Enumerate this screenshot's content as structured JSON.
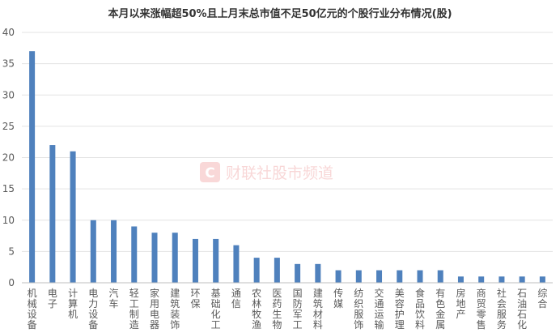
{
  "chart_data": {
    "type": "bar",
    "title": "本月以来涨幅超50%且上月末总市值不足50亿元的个股行业分布情况(股)",
    "xlabel": "",
    "ylabel": "",
    "ylim": [
      0,
      40
    ],
    "yticks": [
      0,
      5,
      10,
      15,
      20,
      25,
      30,
      35,
      40
    ],
    "grid": true,
    "legend": "none",
    "bar_color": "#4f81bd",
    "categories": [
      "机械设备",
      "电子",
      "计算机",
      "电力设备",
      "汽车",
      "轻工制造",
      "家用电器",
      "建筑装饰",
      "环保",
      "基础化工",
      "通信",
      "农林牧渔",
      "医药生物",
      "国防军工",
      "建筑材料",
      "传媒",
      "纺织服饰",
      "交通运输",
      "美容护理",
      "食品饮料",
      "有色金属",
      "房地产",
      "商贸零售",
      "社会服务",
      "石油石化",
      "综合"
    ],
    "values": [
      37,
      22,
      21,
      10,
      10,
      9,
      8,
      8,
      7,
      7,
      6,
      4,
      4,
      3,
      3,
      2,
      2,
      2,
      2,
      2,
      2,
      1,
      1,
      1,
      1,
      1
    ]
  },
  "watermark": {
    "logo_letter": "C",
    "text": "财联社股市频道",
    "color": "#e24d4d"
  }
}
